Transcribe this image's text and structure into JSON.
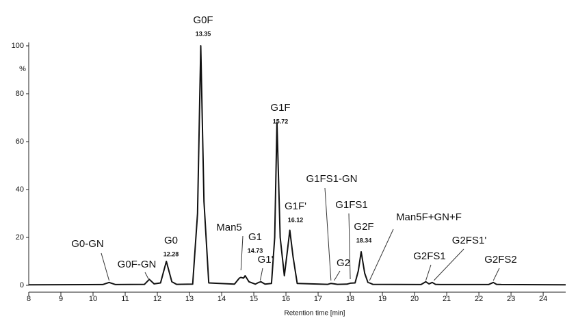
{
  "chart_data": {
    "type": "line",
    "x_label": "Retention time [min]",
    "y_label": "%",
    "color": "#111111",
    "xlim": [
      8,
      24.7
    ],
    "xticks": [
      8,
      9,
      10,
      11,
      12,
      13,
      14,
      15,
      16,
      17,
      18,
      19,
      20,
      21,
      22,
      23,
      24
    ],
    "ylim": [
      0,
      100
    ],
    "yticks": [
      0,
      20,
      40,
      60,
      80,
      100
    ],
    "x": [
      8,
      10.3,
      10.5,
      10.7,
      11.6,
      11.75,
      11.9,
      12.1,
      12.28,
      12.45,
      12.6,
      13.1,
      13.25,
      13.35,
      13.45,
      13.6,
      14.4,
      14.55,
      14.6,
      14.68,
      14.73,
      14.85,
      15.05,
      15.15,
      15.22,
      15.35,
      15.55,
      15.65,
      15.72,
      15.82,
      15.95,
      16.05,
      16.12,
      16.22,
      16.35,
      17.3,
      17.4,
      17.5,
      17.6,
      17.9,
      18.0,
      18.15,
      18.25,
      18.34,
      18.45,
      18.55,
      18.6,
      18.7,
      20.2,
      20.35,
      20.45,
      20.55,
      20.65,
      20.8,
      22.3,
      22.45,
      22.55,
      22.7,
      24.7
    ],
    "values": [
      0.2,
      0.3,
      1.2,
      0.3,
      0.4,
      2.5,
      0.6,
      1,
      10,
      1.5,
      0.4,
      0.5,
      30,
      100,
      35,
      1,
      0.5,
      3,
      3.3,
      3,
      4,
      1.5,
      0.5,
      1.2,
      1.5,
      0.5,
      0.8,
      20,
      68,
      20,
      4,
      15,
      23,
      12,
      0.8,
      0.4,
      0.8,
      0.6,
      0.4,
      0.5,
      0.9,
      1,
      6,
      14,
      5,
      1.2,
      1,
      0.4,
      0.3,
      1.5,
      0.6,
      1.2,
      0.4,
      0.3,
      0.3,
      1.2,
      0.4,
      0.3,
      0.2
    ],
    "peaks": [
      {
        "name": "G0-GN",
        "x": 10.5
      },
      {
        "name": "G0F-GN",
        "x": 11.75
      },
      {
        "name": "G0",
        "rt": 12.28
      },
      {
        "name": "G0F",
        "rt": 13.35
      },
      {
        "name": "Man5",
        "x": 14.6
      },
      {
        "name": "G1",
        "rt": 14.73
      },
      {
        "name": "G1'",
        "x": 15.2
      },
      {
        "name": "G1F",
        "rt": 15.72
      },
      {
        "name": "G1F'",
        "rt": 16.12
      },
      {
        "name": "G1FS1-GN",
        "x": 17.4
      },
      {
        "name": "G2",
        "x": 17.5
      },
      {
        "name": "G1FS1",
        "x": 18.0
      },
      {
        "name": "G2F",
        "rt": 18.34
      },
      {
        "name": "Man5F+GN+F",
        "x": 18.6
      },
      {
        "name": "G2FS1",
        "x": 20.35
      },
      {
        "name": "G2FS1'",
        "x": 20.6
      },
      {
        "name": "G2FS2",
        "x": 22.45
      }
    ]
  }
}
